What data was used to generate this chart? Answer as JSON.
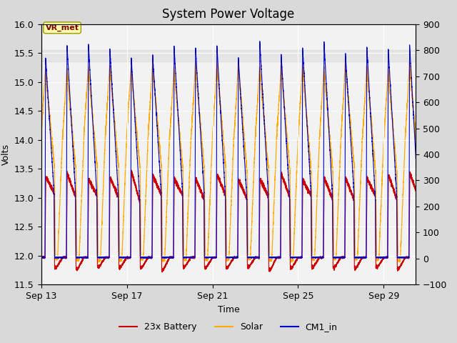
{
  "title": "System Power Voltage",
  "xlabel": "Time",
  "ylabel_left": "Volts",
  "ylim_left": [
    11.5,
    16.0
  ],
  "ylim_right": [
    -100,
    900
  ],
  "xlim_days": [
    0,
    17.5
  ],
  "x_ticks_labels": [
    "Sep 13",
    "Sep 17",
    "Sep 21",
    "Sep 25",
    "Sep 29"
  ],
  "x_ticks_pos": [
    0,
    4,
    8,
    12,
    16
  ],
  "y_ticks_left": [
    11.5,
    12.0,
    12.5,
    13.0,
    13.5,
    14.0,
    14.5,
    15.0,
    15.5,
    16.0
  ],
  "y_ticks_right": [
    -100,
    0,
    100,
    200,
    300,
    400,
    500,
    600,
    700,
    800,
    900
  ],
  "color_battery": "#cc0000",
  "color_solar": "#ffaa00",
  "color_cm1": "#0000cc",
  "legend_entries": [
    "23x Battery",
    "Solar",
    "CM1_in"
  ],
  "annotation_text": "VR_met",
  "background_color": "#d9d9d9",
  "plot_bg_color": "#f2f2f2",
  "title_fontsize": 12,
  "axis_fontsize": 9,
  "n_cycles": 18,
  "shaded_ymin": 15.35,
  "shaded_ymax": 15.55,
  "figsize": [
    6.4,
    4.8
  ],
  "dpi": 100
}
